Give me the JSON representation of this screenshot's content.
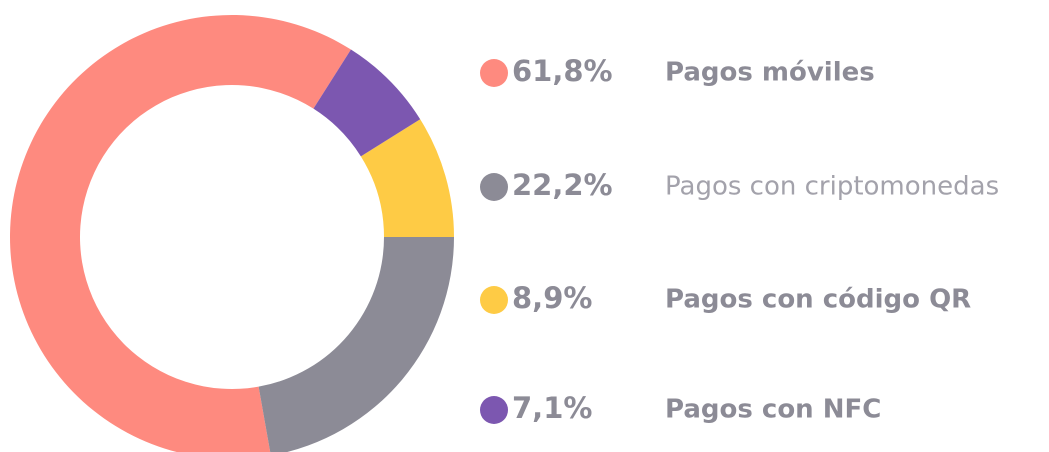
{
  "chart_data": {
    "type": "donut",
    "categories": [
      "Pagos móviles",
      "Pagos con criptomonedas",
      "Pagos con código QR",
      "Pagos con NFC"
    ],
    "values": [
      61.8,
      22.2,
      8.9,
      7.1
    ],
    "value_labels": [
      "61,8%",
      "22,2%",
      "8,9%",
      "7,1%"
    ],
    "colors": [
      "#fe8a7f",
      "#8c8b96",
      "#fecb45",
      "#7c57b0"
    ],
    "legend": "right"
  }
}
